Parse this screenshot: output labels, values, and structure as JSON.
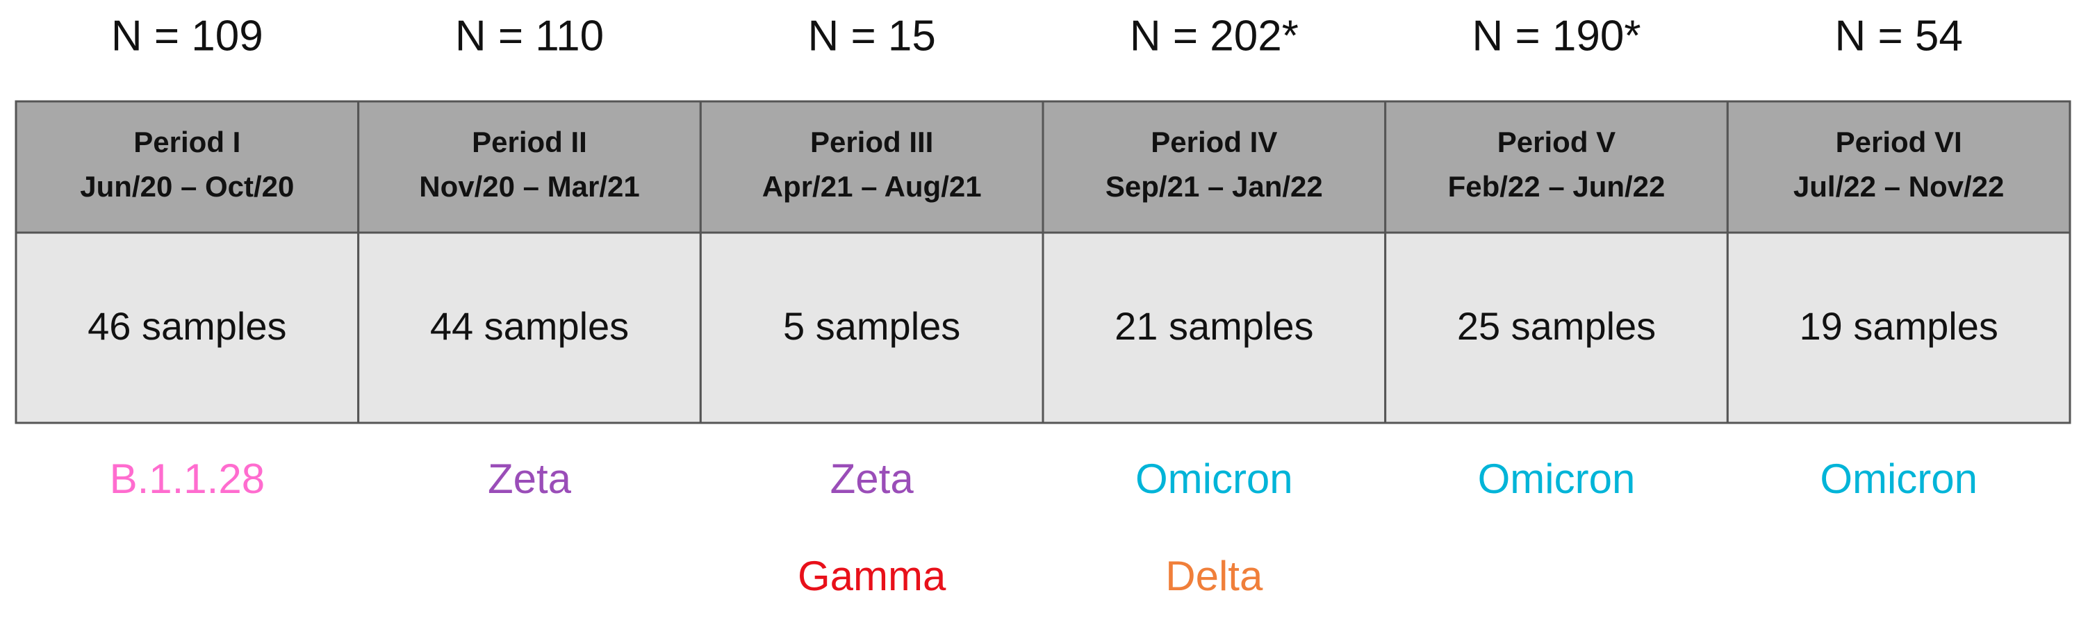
{
  "columns": [
    {
      "n": "N = 109",
      "period": "Period I",
      "range": "Jun/20 – Oct/20",
      "samples": "46 samples",
      "variants": [
        {
          "label": "B.1.1.28",
          "color": "#ff6ccf"
        }
      ]
    },
    {
      "n": "N = 110",
      "period": "Period II",
      "range": "Nov/20 – Mar/21",
      "samples": "44 samples",
      "variants": [
        {
          "label": "Zeta",
          "color": "#9a4db8"
        }
      ]
    },
    {
      "n": "N = 15",
      "period": "Period III",
      "range": "Apr/21 – Aug/21",
      "samples": "5 samples",
      "variants": [
        {
          "label": "Zeta",
          "color": "#9a4db8"
        },
        {
          "label": "Gamma",
          "color": "#e8101a"
        }
      ]
    },
    {
      "n": "N = 202*",
      "period": "Period IV",
      "range": "Sep/21 – Jan/22",
      "samples": "21 samples",
      "variants": [
        {
          "label": "Omicron",
          "color": "#00b4d8"
        },
        {
          "label": "Delta",
          "color": "#f07f3a"
        }
      ]
    },
    {
      "n": "N = 190*",
      "period": "Period V",
      "range": "Feb/22 – Jun/22",
      "samples": "25 samples",
      "variants": [
        {
          "label": "Omicron",
          "color": "#00b4d8"
        }
      ]
    },
    {
      "n": "N = 54",
      "period": "Period VI",
      "range": "Jul/22 – Nov/22",
      "samples": "19 samples",
      "variants": [
        {
          "label": "Omicron",
          "color": "#00b4d8"
        }
      ]
    }
  ]
}
